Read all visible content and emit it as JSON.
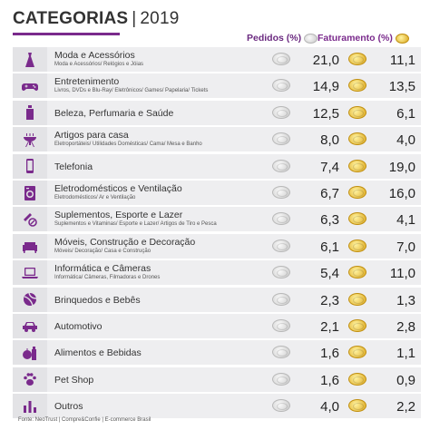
{
  "header": {
    "title": "CATEGORIAS",
    "separator": "|",
    "year": "2019",
    "col_pedidos": "Pedidos (%)",
    "col_faturamento": "Faturamento (%)"
  },
  "colors": {
    "accent": "#7a2a8c",
    "icon": "#7a2a8c",
    "row_bg": "#eeeef0",
    "silver_coin": "#c9c9c9",
    "gold_coin": "#dca71d"
  },
  "chart_data": {
    "type": "table",
    "title": "CATEGORIAS | 2019",
    "columns": [
      "Pedidos (%)",
      "Faturamento (%)"
    ],
    "rows": [
      {
        "icon": "dress-icon",
        "name": "Moda e Acessórios",
        "sub": "Moda e Acessórios/ Relógios e Jóias",
        "pedidos": "21,0",
        "faturamento": "11,1"
      },
      {
        "icon": "gamepad-icon",
        "name": "Entretenimento",
        "sub": "Livros, DVDs e Blu-Ray/ Eletrônicos/ Games/ Papelaria/ Tickets",
        "pedidos": "14,9",
        "faturamento": "13,5"
      },
      {
        "icon": "perfume-icon",
        "name": "Beleza, Perfumaria e Saúde",
        "sub": "",
        "pedidos": "12,5",
        "faturamento": "6,1"
      },
      {
        "icon": "grill-icon",
        "name": "Artigos para casa",
        "sub": "Eletroportáteis/ Utilidades Domésticas/ Cama/ Mesa e Banho",
        "pedidos": "8,0",
        "faturamento": "4,0"
      },
      {
        "icon": "phone-icon",
        "name": "Telefonia",
        "sub": "",
        "pedidos": "7,4",
        "faturamento": "19,0"
      },
      {
        "icon": "washing-machine-icon",
        "name": "Eletrodomésticos e Ventilação",
        "sub": "Eletrodomésticos/ Ar e Ventilação",
        "pedidos": "6,7",
        "faturamento": "16,0"
      },
      {
        "icon": "supplements-icon",
        "name": "Suplementos, Esporte e Lazer",
        "sub": "Suplementos e Vitaminas/ Esporte e Lazer/ Artigos de Tiro e Pesca",
        "pedidos": "6,3",
        "faturamento": "4,1"
      },
      {
        "icon": "sofa-icon",
        "name": "Móveis, Construção e Decoração",
        "sub": "Móveis/ Decoração/ Casa e Construção",
        "pedidos": "6,1",
        "faturamento": "7,0"
      },
      {
        "icon": "laptop-icon",
        "name": "Informática e Câmeras",
        "sub": "Informática/ Câmeras, Filmadoras e Drones",
        "pedidos": "5,4",
        "faturamento": "11,0"
      },
      {
        "icon": "ball-icon",
        "name": "Brinquedos e Bebês",
        "sub": "",
        "pedidos": "2,3",
        "faturamento": "1,3"
      },
      {
        "icon": "car-icon",
        "name": "Automotivo",
        "sub": "",
        "pedidos": "2,1",
        "faturamento": "2,8"
      },
      {
        "icon": "apple-bottle-icon",
        "name": "Alimentos e Bebidas",
        "sub": "",
        "pedidos": "1,6",
        "faturamento": "1,1"
      },
      {
        "icon": "paw-icon",
        "name": "Pet Shop",
        "sub": "",
        "pedidos": "1,6",
        "faturamento": "0,9"
      },
      {
        "icon": "bar-chart-icon",
        "name": "Outros",
        "sub": "",
        "pedidos": "4,0",
        "faturamento": "2,2"
      }
    ]
  },
  "footer": {
    "source": "Fonte: NeoTrust | Compre&Confie | E-commerce Brasil"
  }
}
